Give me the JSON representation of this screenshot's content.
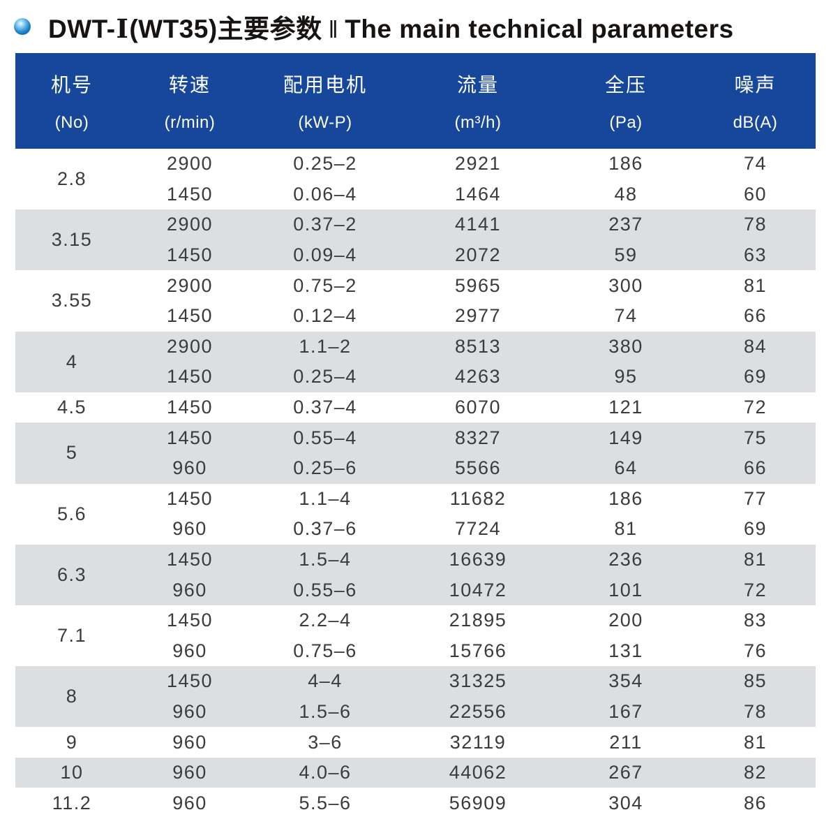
{
  "title": {
    "model_prefix": "DWT-",
    "model_numeral": "Ⅰ",
    "model_suffix": "(WT35)主要参数",
    "separator": "‖",
    "english": "The main technical parameters"
  },
  "colors": {
    "header_bg": "#17479a",
    "shaded_row_bg": "#dbdfe2",
    "bullet_blue": "#0068b7"
  },
  "table": {
    "columns": [
      {
        "label": "机号",
        "unit": "(No)"
      },
      {
        "label": "转速",
        "unit": "(r/min)"
      },
      {
        "label": "配用电机",
        "unit": "(kW-P)"
      },
      {
        "label": "流量",
        "unit": "(m³/h)"
      },
      {
        "label": "全压",
        "unit": "(Pa)"
      },
      {
        "label": "噪声",
        "unit": "dB(A)"
      }
    ],
    "groups": [
      {
        "no": "2.8",
        "rows": [
          {
            "rpm": "2900",
            "motor": "0.25–2",
            "flow": "2921",
            "pressure": "186",
            "noise": "74"
          },
          {
            "rpm": "1450",
            "motor": "0.06–4",
            "flow": "1464",
            "pressure": "48",
            "noise": "60"
          }
        ]
      },
      {
        "no": "3.15",
        "rows": [
          {
            "rpm": "2900",
            "motor": "0.37–2",
            "flow": "4141",
            "pressure": "237",
            "noise": "78"
          },
          {
            "rpm": "1450",
            "motor": "0.09–4",
            "flow": "2072",
            "pressure": "59",
            "noise": "63"
          }
        ]
      },
      {
        "no": "3.55",
        "rows": [
          {
            "rpm": "2900",
            "motor": "0.75–2",
            "flow": "5965",
            "pressure": "300",
            "noise": "81"
          },
          {
            "rpm": "1450",
            "motor": "0.12–4",
            "flow": "2977",
            "pressure": "74",
            "noise": "66"
          }
        ]
      },
      {
        "no": "4",
        "rows": [
          {
            "rpm": "2900",
            "motor": "1.1–2",
            "flow": "8513",
            "pressure": "380",
            "noise": "84"
          },
          {
            "rpm": "1450",
            "motor": "0.25–4",
            "flow": "4263",
            "pressure": "95",
            "noise": "69"
          }
        ]
      },
      {
        "no": "4.5",
        "rows": [
          {
            "rpm": "1450",
            "motor": "0.37–4",
            "flow": "6070",
            "pressure": "121",
            "noise": "72"
          }
        ]
      },
      {
        "no": "5",
        "rows": [
          {
            "rpm": "1450",
            "motor": "0.55–4",
            "flow": "8327",
            "pressure": "149",
            "noise": "75"
          },
          {
            "rpm": "960",
            "motor": "0.25–6",
            "flow": "5566",
            "pressure": "64",
            "noise": "66"
          }
        ]
      },
      {
        "no": "5.6",
        "rows": [
          {
            "rpm": "1450",
            "motor": "1.1–4",
            "flow": "11682",
            "pressure": "186",
            "noise": "77"
          },
          {
            "rpm": "960",
            "motor": "0.37–6",
            "flow": "7724",
            "pressure": "81",
            "noise": "69"
          }
        ]
      },
      {
        "no": "6.3",
        "rows": [
          {
            "rpm": "1450",
            "motor": "1.5–4",
            "flow": "16639",
            "pressure": "236",
            "noise": "81"
          },
          {
            "rpm": "960",
            "motor": "0.55–6",
            "flow": "10472",
            "pressure": "101",
            "noise": "72"
          }
        ]
      },
      {
        "no": "7.1",
        "rows": [
          {
            "rpm": "1450",
            "motor": "2.2–4",
            "flow": "21895",
            "pressure": "200",
            "noise": "83"
          },
          {
            "rpm": "960",
            "motor": "0.75–6",
            "flow": "15766",
            "pressure": "131",
            "noise": "76"
          }
        ]
      },
      {
        "no": "8",
        "rows": [
          {
            "rpm": "1450",
            "motor": "4–4",
            "flow": "31325",
            "pressure": "354",
            "noise": "85"
          },
          {
            "rpm": "960",
            "motor": "1.5–6",
            "flow": "22556",
            "pressure": "167",
            "noise": "78"
          }
        ]
      },
      {
        "no": "9",
        "rows": [
          {
            "rpm": "960",
            "motor": "3–6",
            "flow": "32119",
            "pressure": "211",
            "noise": "81"
          }
        ]
      },
      {
        "no": "10",
        "rows": [
          {
            "rpm": "960",
            "motor": "4.0–6",
            "flow": "44062",
            "pressure": "267",
            "noise": "82"
          }
        ]
      },
      {
        "no": "11.2",
        "rows": [
          {
            "rpm": "960",
            "motor": "5.5–6",
            "flow": "56909",
            "pressure": "304",
            "noise": "86"
          }
        ]
      }
    ]
  }
}
